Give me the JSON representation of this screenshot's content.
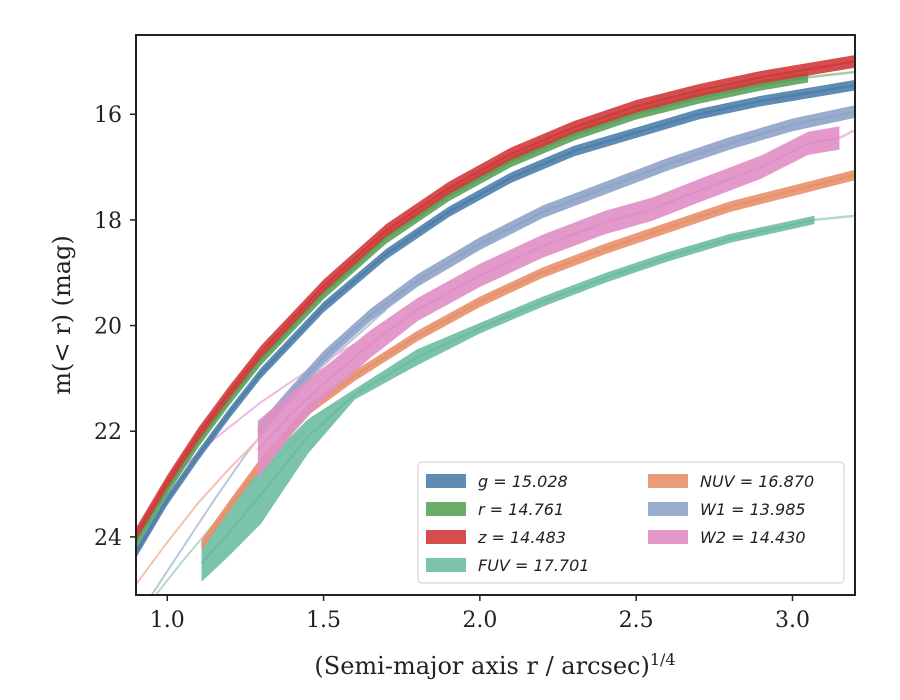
{
  "chart_data": {
    "type": "line",
    "xlabel": "(Semi-major axis r / arcsec)",
    "xlabel_exponent": "1/4",
    "ylabel": "m(< r) (mag)",
    "xlim": [
      0.9,
      3.2
    ],
    "ylim": [
      25.1,
      14.5
    ],
    "y_inverted": true,
    "grid": false,
    "legend_position": "lower-right",
    "x_ticks": [
      1.0,
      1.5,
      2.0,
      2.5,
      3.0
    ],
    "x_tick_labels": [
      "1.0",
      "1.5",
      "2.0",
      "2.5",
      "3.0"
    ],
    "y_ticks": [
      16,
      18,
      20,
      22,
      24
    ],
    "y_tick_labels": [
      "16",
      "18",
      "20",
      "22",
      "24"
    ],
    "series": [
      {
        "name": "g = 15.028",
        "color": "#4e7fab",
        "band": 0.1,
        "points": [
          [
            0.9,
            24.3
          ],
          [
            1.0,
            23.3
          ],
          [
            1.1,
            22.45
          ],
          [
            1.2,
            21.65
          ],
          [
            1.3,
            20.9
          ],
          [
            1.5,
            19.65
          ],
          [
            1.7,
            18.65
          ],
          [
            1.9,
            17.85
          ],
          [
            2.1,
            17.2
          ],
          [
            2.3,
            16.7
          ],
          [
            2.5,
            16.35
          ],
          [
            2.7,
            16.0
          ],
          [
            2.9,
            15.75
          ],
          [
            3.1,
            15.55
          ],
          [
            3.2,
            15.45
          ]
        ]
      },
      {
        "name": "r = 14.761",
        "color": "#5ba35b",
        "band": 0.1,
        "points": [
          [
            0.9,
            24.1
          ],
          [
            1.0,
            23.1
          ],
          [
            1.1,
            22.2
          ],
          [
            1.2,
            21.4
          ],
          [
            1.3,
            20.65
          ],
          [
            1.5,
            19.4
          ],
          [
            1.7,
            18.35
          ],
          [
            1.9,
            17.55
          ],
          [
            2.1,
            16.9
          ],
          [
            2.3,
            16.4
          ],
          [
            2.5,
            16.0
          ],
          [
            2.7,
            15.7
          ],
          [
            2.9,
            15.45
          ],
          [
            3.05,
            15.3
          ]
        ],
        "extension": [
          [
            3.05,
            15.3
          ],
          [
            3.2,
            15.2
          ]
        ]
      },
      {
        "name": "z = 14.483",
        "color": "#d03a3a",
        "band": 0.12,
        "points": [
          [
            0.9,
            23.95
          ],
          [
            1.0,
            22.95
          ],
          [
            1.1,
            22.05
          ],
          [
            1.2,
            21.25
          ],
          [
            1.3,
            20.5
          ],
          [
            1.5,
            19.25
          ],
          [
            1.7,
            18.2
          ],
          [
            1.9,
            17.4
          ],
          [
            2.1,
            16.75
          ],
          [
            2.3,
            16.25
          ],
          [
            2.5,
            15.85
          ],
          [
            2.7,
            15.55
          ],
          [
            2.9,
            15.3
          ],
          [
            3.1,
            15.1
          ],
          [
            3.2,
            15.0
          ]
        ]
      },
      {
        "name": "FUV = 17.701",
        "color": "#6dbca2",
        "band": 0.2,
        "points": [
          [
            1.11,
            24.5
          ],
          [
            1.2,
            23.9
          ],
          [
            1.3,
            23.2
          ],
          [
            1.45,
            22.1
          ],
          [
            1.6,
            21.3
          ],
          [
            1.8,
            20.6
          ],
          [
            2.0,
            20.05
          ],
          [
            2.2,
            19.55
          ],
          [
            2.4,
            19.1
          ],
          [
            2.6,
            18.7
          ],
          [
            2.8,
            18.35
          ],
          [
            3.07,
            18.0
          ]
        ],
        "band_start": [
          [
            1.11,
            0.35
          ],
          [
            1.3,
            0.55
          ],
          [
            1.6,
            0.1
          ],
          [
            1.8,
            0.15
          ],
          [
            2.0,
            0.1
          ],
          [
            3.07,
            0.08
          ]
        ],
        "extension": [
          [
            3.07,
            18.0
          ],
          [
            3.2,
            17.92
          ]
        ]
      },
      {
        "name": "NUV = 16.870",
        "color": "#e8906c",
        "band": 0.1,
        "points": [
          [
            1.11,
            24.15
          ],
          [
            1.2,
            23.4
          ],
          [
            1.3,
            22.6
          ],
          [
            1.45,
            21.6
          ],
          [
            1.6,
            20.95
          ],
          [
            1.8,
            20.2
          ],
          [
            2.0,
            19.55
          ],
          [
            2.2,
            19.0
          ],
          [
            2.4,
            18.55
          ],
          [
            2.6,
            18.15
          ],
          [
            2.8,
            17.75
          ],
          [
            3.0,
            17.45
          ],
          [
            3.2,
            17.15
          ]
        ]
      },
      {
        "name": "W1 = 13.985",
        "color": "#8fa3c8",
        "band": 0.12,
        "points": [
          [
            1.29,
            22.0
          ],
          [
            1.4,
            21.25
          ],
          [
            1.5,
            20.6
          ],
          [
            1.65,
            19.8
          ],
          [
            1.8,
            19.15
          ],
          [
            2.0,
            18.45
          ],
          [
            2.2,
            17.85
          ],
          [
            2.4,
            17.4
          ],
          [
            2.6,
            16.95
          ],
          [
            2.8,
            16.55
          ],
          [
            3.0,
            16.2
          ],
          [
            3.2,
            15.95
          ]
        ]
      },
      {
        "name": "W2 = 14.430",
        "color": "#e08fc4",
        "band": 0.22,
        "points": [
          [
            1.29,
            22.35
          ],
          [
            1.4,
            21.65
          ],
          [
            1.5,
            21.1
          ],
          [
            1.65,
            20.35
          ],
          [
            1.8,
            19.7
          ],
          [
            2.0,
            19.05
          ],
          [
            2.2,
            18.5
          ],
          [
            2.4,
            18.05
          ],
          [
            2.55,
            17.8
          ],
          [
            2.7,
            17.45
          ],
          [
            2.9,
            17.0
          ],
          [
            3.05,
            16.55
          ],
          [
            3.15,
            16.45
          ]
        ],
        "band_start": [
          [
            1.29,
            0.55
          ],
          [
            1.4,
            0.4
          ],
          [
            1.5,
            0.3
          ],
          [
            1.8,
            0.22
          ]
        ],
        "extension": [
          [
            3.15,
            16.45
          ],
          [
            3.2,
            16.3
          ]
        ]
      }
    ],
    "faint_model_lines": [
      {
        "color": "#bbc6dd",
        "points": [
          [
            0.95,
            25.1
          ],
          [
            1.05,
            24.2
          ],
          [
            1.15,
            23.3
          ],
          [
            1.25,
            22.45
          ],
          [
            1.35,
            21.7
          ],
          [
            1.5,
            20.75
          ],
          [
            1.7,
            19.7
          ]
        ]
      },
      {
        "color": "#f2c3ae",
        "points": [
          [
            0.9,
            24.9
          ],
          [
            1.0,
            24.1
          ],
          [
            1.1,
            23.35
          ],
          [
            1.2,
            22.7
          ],
          [
            1.3,
            22.1
          ]
        ]
      },
      {
        "color": "#efbbdc",
        "points": [
          [
            1.0,
            22.95
          ],
          [
            1.15,
            22.15
          ],
          [
            1.3,
            21.45
          ],
          [
            1.45,
            20.85
          ],
          [
            1.6,
            20.35
          ]
        ]
      },
      {
        "color": "#b3dccd",
        "points": [
          [
            0.95,
            25.2
          ],
          [
            1.05,
            24.45
          ],
          [
            1.15,
            23.75
          ],
          [
            1.25,
            23.1
          ],
          [
            1.35,
            22.5
          ],
          [
            1.45,
            21.95
          ]
        ]
      }
    ]
  }
}
